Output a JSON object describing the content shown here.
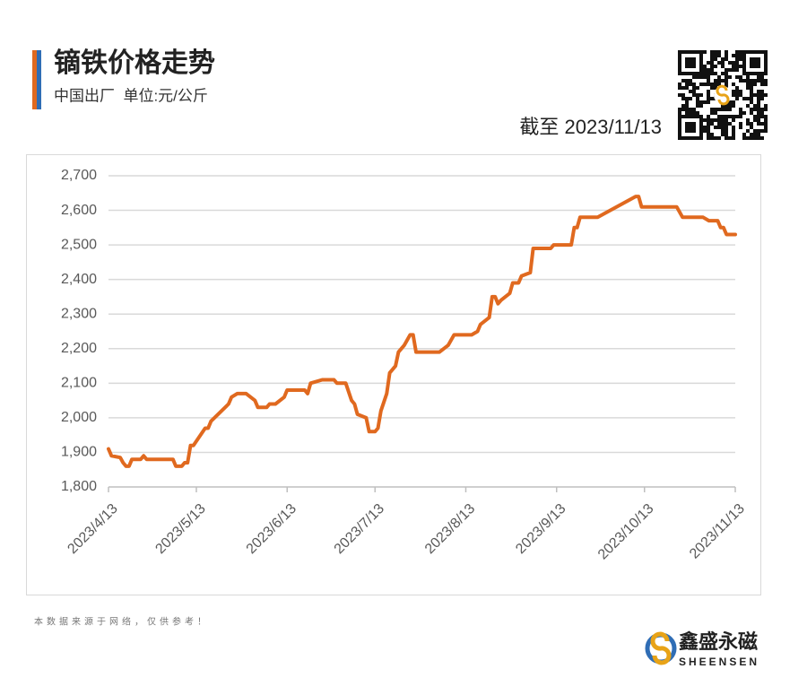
{
  "header": {
    "title": "镝铁价格走势",
    "subtitle": "中国出厂  单位:元/公斤",
    "as_of": "截至 2023/11/13"
  },
  "footer": {
    "source": "本数据来源于网络，仅供参考！",
    "brand": "鑫盛永磁",
    "brand_latin": "SHEENSEN"
  },
  "chart_data": {
    "type": "line",
    "color": "#e0691f",
    "grid": true,
    "x": [
      "2023/4/13",
      "2023/4/14",
      "2023/4/17",
      "2023/4/18",
      "2023/4/19",
      "2023/4/20",
      "2023/4/21",
      "2023/4/24",
      "2023/4/25",
      "2023/4/26",
      "2023/5/5",
      "2023/5/6",
      "2023/5/8",
      "2023/5/9",
      "2023/5/10",
      "2023/5/11",
      "2023/5/12",
      "2023/5/16",
      "2023/5/17",
      "2023/5/18",
      "2023/5/24",
      "2023/5/25",
      "2023/5/27",
      "2023/5/30",
      "2023/6/2",
      "2023/6/3",
      "2023/6/6",
      "2023/6/7",
      "2023/6/9",
      "2023/6/12",
      "2023/6/13",
      "2023/6/19",
      "2023/6/20",
      "2023/6/21",
      "2023/6/25",
      "2023/6/29",
      "2023/6/30",
      "2023/7/3",
      "2023/7/5",
      "2023/7/6",
      "2023/7/7",
      "2023/7/10",
      "2023/7/11",
      "2023/7/13",
      "2023/7/14",
      "2023/7/15",
      "2023/7/17",
      "2023/7/18",
      "2023/7/20",
      "2023/7/21",
      "2023/7/23",
      "2023/7/25",
      "2023/7/26",
      "2023/7/27",
      "2023/8/4",
      "2023/8/7",
      "2023/8/9",
      "2023/8/15",
      "2023/8/17",
      "2023/8/18",
      "2023/8/21",
      "2023/8/22",
      "2023/8/23",
      "2023/8/24",
      "2023/8/25",
      "2023/8/28",
      "2023/8/29",
      "2023/8/31",
      "2023/9/1",
      "2023/9/4",
      "2023/9/5",
      "2023/9/11",
      "2023/9/12",
      "2023/9/18",
      "2023/9/19",
      "2023/9/20",
      "2023/9/21",
      "2023/9/27",
      "2023/10/10",
      "2023/10/11",
      "2023/10/12",
      "2023/10/24",
      "2023/10/26",
      "2023/11/2",
      "2023/11/4",
      "2023/11/7",
      "2023/11/8",
      "2023/11/9",
      "2023/11/10",
      "2023/11/13"
    ],
    "values": [
      1910,
      1890,
      1885,
      1870,
      1860,
      1860,
      1880,
      1880,
      1890,
      1880,
      1880,
      1860,
      1860,
      1870,
      1870,
      1920,
      1920,
      1970,
      1970,
      1990,
      2040,
      2060,
      2070,
      2070,
      2050,
      2030,
      2030,
      2040,
      2040,
      2060,
      2080,
      2080,
      2070,
      2100,
      2110,
      2110,
      2100,
      2100,
      2050,
      2040,
      2010,
      2000,
      1960,
      1960,
      1970,
      2020,
      2070,
      2130,
      2150,
      2190,
      2210,
      2240,
      2240,
      2190,
      2190,
      2210,
      2240,
      2240,
      2250,
      2270,
      2290,
      2350,
      2350,
      2330,
      2340,
      2360,
      2390,
      2390,
      2410,
      2420,
      2490,
      2490,
      2500,
      2500,
      2550,
      2550,
      2580,
      2580,
      2640,
      2640,
      2610,
      2610,
      2580,
      2580,
      2570,
      2570,
      2550,
      2550,
      2530,
      2530
    ],
    "xlim": [
      "2023/4/13",
      "2023/11/13"
    ],
    "xticks": [
      "2023/4/13",
      "2023/5/13",
      "2023/6/13",
      "2023/7/13",
      "2023/8/13",
      "2023/9/13",
      "2023/10/13",
      "2023/11/13"
    ],
    "ylim": [
      1800,
      2700
    ],
    "yticks": [
      {
        "value": 1800,
        "label": "1,800"
      },
      {
        "value": 1900,
        "label": "1,900"
      },
      {
        "value": 2000,
        "label": "2,000"
      },
      {
        "value": 2100,
        "label": "2,100"
      },
      {
        "value": 2200,
        "label": "2,200"
      },
      {
        "value": 2300,
        "label": "2,300"
      },
      {
        "value": 2400,
        "label": "2,400"
      },
      {
        "value": 2500,
        "label": "2,500"
      },
      {
        "value": 2600,
        "label": "2,600"
      },
      {
        "value": 2700,
        "label": "2,700"
      }
    ]
  }
}
